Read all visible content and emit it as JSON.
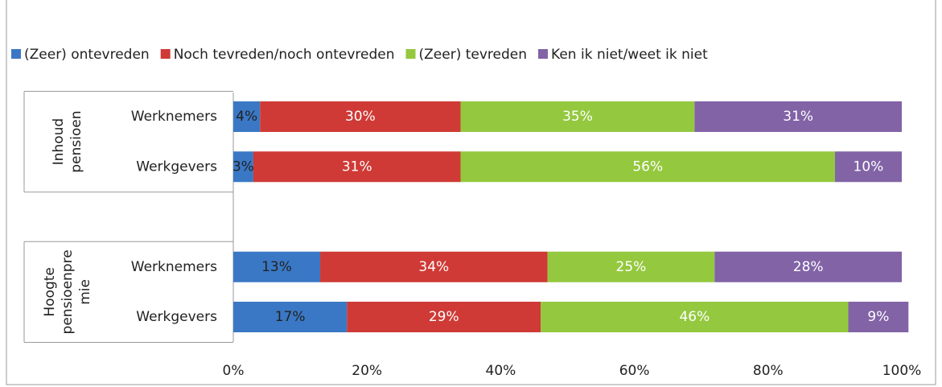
{
  "chart_data": {
    "type": "stacked_bar_horizontal",
    "groups": [
      {
        "label_lines": [
          "Inhoud",
          "pensioen"
        ],
        "rows": [
          0,
          1
        ]
      },
      {
        "label_lines": [
          "Hoogte",
          "pensioenpre",
          "mie"
        ],
        "rows": [
          3,
          4
        ]
      }
    ],
    "categories": [
      "Werknemers",
      "Werkgevers",
      null,
      "Werknemers",
      "Werkgevers"
    ],
    "series": [
      {
        "name": "(Zeer) ontevreden",
        "color": "#3a78c5",
        "label_color": "#222222",
        "values": [
          4,
          3,
          null,
          13,
          17
        ],
        "value_labels": [
          "4%",
          "3%",
          null,
          "13%",
          "17%"
        ]
      },
      {
        "name": "Noch tevreden/noch ontevreden",
        "color": "#cf3a36",
        "label_color": "#ffffff",
        "values": [
          30,
          31,
          null,
          34,
          29
        ],
        "value_labels": [
          "30%",
          "31%",
          null,
          "34%",
          "29%"
        ]
      },
      {
        "name": "(Zeer) tevreden",
        "color": "#94c83f",
        "label_color": "#ffffff",
        "values": [
          35,
          56,
          null,
          25,
          46
        ],
        "value_labels": [
          "35%",
          "56%",
          null,
          "25%",
          "46%"
        ]
      },
      {
        "name": "Ken ik niet/weet ik niet",
        "color": "#8163a6",
        "label_color": "#ffffff",
        "values": [
          31,
          10,
          null,
          28,
          9
        ],
        "value_labels": [
          "31%",
          "10%",
          null,
          "28%",
          "9%"
        ]
      }
    ],
    "xlim": [
      0,
      100
    ],
    "xticks": [
      {
        "value": 0,
        "label": "0%"
      },
      {
        "value": 20,
        "label": "20%"
      },
      {
        "value": 40,
        "label": "40%"
      },
      {
        "value": 60,
        "label": "60%"
      },
      {
        "value": 80,
        "label": "80%"
      },
      {
        "value": 100,
        "label": "100%"
      }
    ],
    "legend": "top"
  }
}
